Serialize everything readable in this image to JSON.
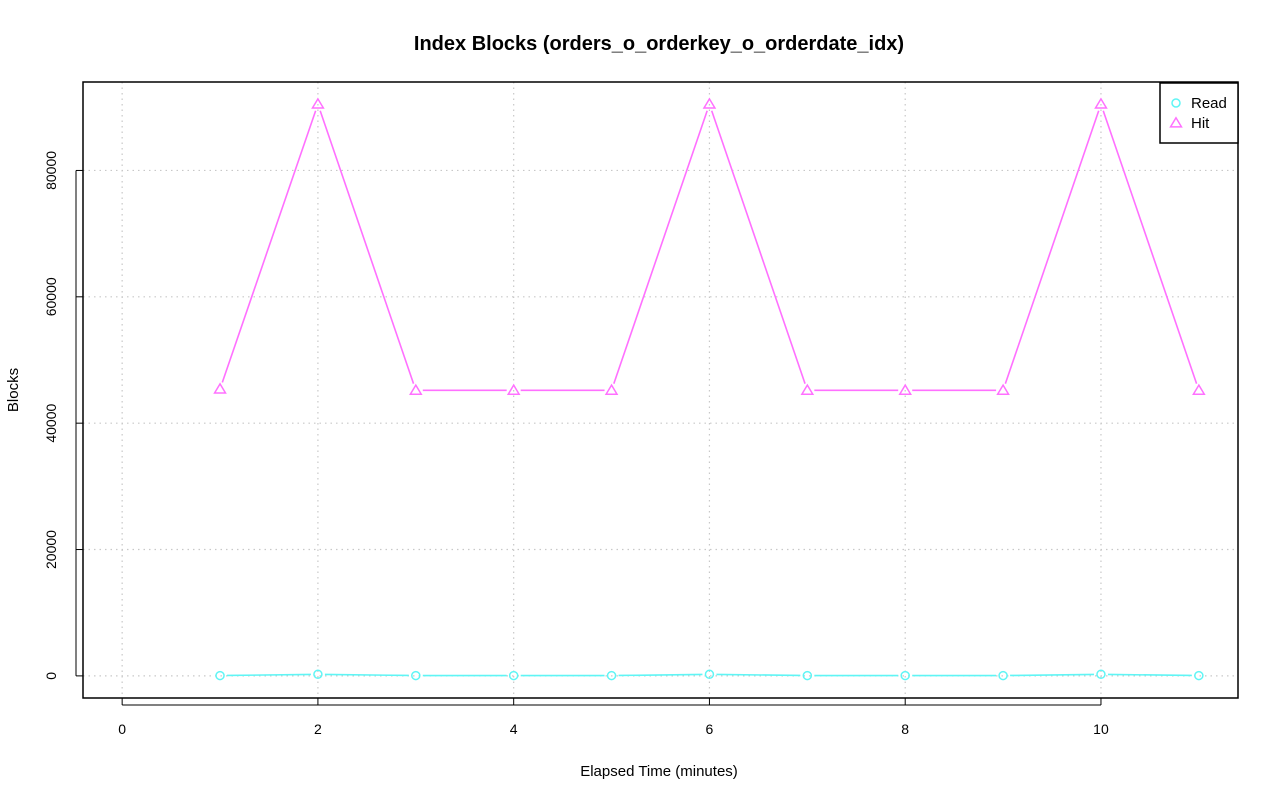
{
  "chart_data": {
    "type": "line",
    "title": "Index Blocks (orders_o_orderkey_o_orderdate_idx)",
    "xlabel": "Elapsed Time (minutes)",
    "ylabel": "Blocks",
    "xlim": [
      -0.4,
      11.4
    ],
    "ylim": [
      -3500,
      94000
    ],
    "x_ticks": [
      0,
      2,
      4,
      6,
      8,
      10
    ],
    "x_tick_labels": [
      "0",
      "2",
      "4",
      "6",
      "8",
      "10"
    ],
    "y_ticks": [
      0,
      20000,
      40000,
      60000,
      80000
    ],
    "y_tick_labels": [
      "0",
      "20000",
      "40000",
      "60000",
      "80000"
    ],
    "grid": true,
    "legend_position": "top-right",
    "x": [
      1,
      2,
      3,
      4,
      5,
      6,
      7,
      8,
      9,
      10,
      11
    ],
    "series": [
      {
        "name": "Read",
        "color": "#5ff5f5",
        "marker": "circle",
        "values": [
          50,
          250,
          50,
          50,
          50,
          250,
          50,
          50,
          50,
          250,
          50
        ]
      },
      {
        "name": "Hit",
        "color": "#ff70ff",
        "marker": "triangle",
        "values": [
          45400,
          90500,
          45200,
          45200,
          45200,
          90500,
          45200,
          45200,
          45200,
          90500,
          45200
        ]
      }
    ]
  }
}
